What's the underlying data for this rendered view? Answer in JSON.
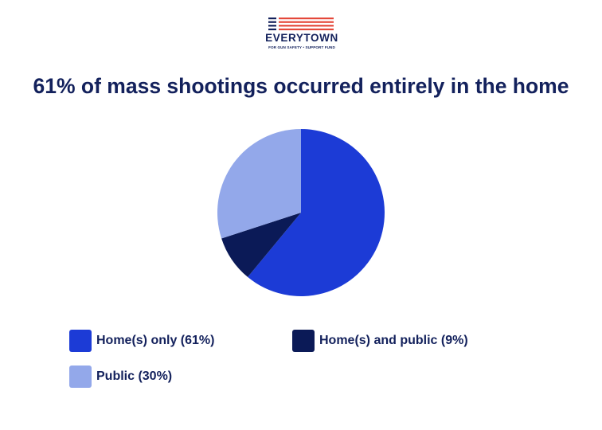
{
  "logo": {
    "wordmark": "EVERYTOWN",
    "tagline": "FOR GUN SAFETY • SUPPORT FUND",
    "colors": {
      "red": "#e4483a",
      "navy": "#13215c"
    }
  },
  "chart_data": {
    "type": "pie",
    "title": "61% of mass shootings occurred entirely in the home",
    "slices": [
      {
        "label": "Home(s) only (61%)",
        "value": 61,
        "color": "#1c3bd6"
      },
      {
        "label": "Home(s) and public (9%)",
        "value": 9,
        "color": "#0b1a57"
      },
      {
        "label": "Public (30%)",
        "value": 30,
        "color": "#93a8ea"
      }
    ],
    "start_angle_deg": 0,
    "direction": "clockwise",
    "legend": "bottom"
  }
}
